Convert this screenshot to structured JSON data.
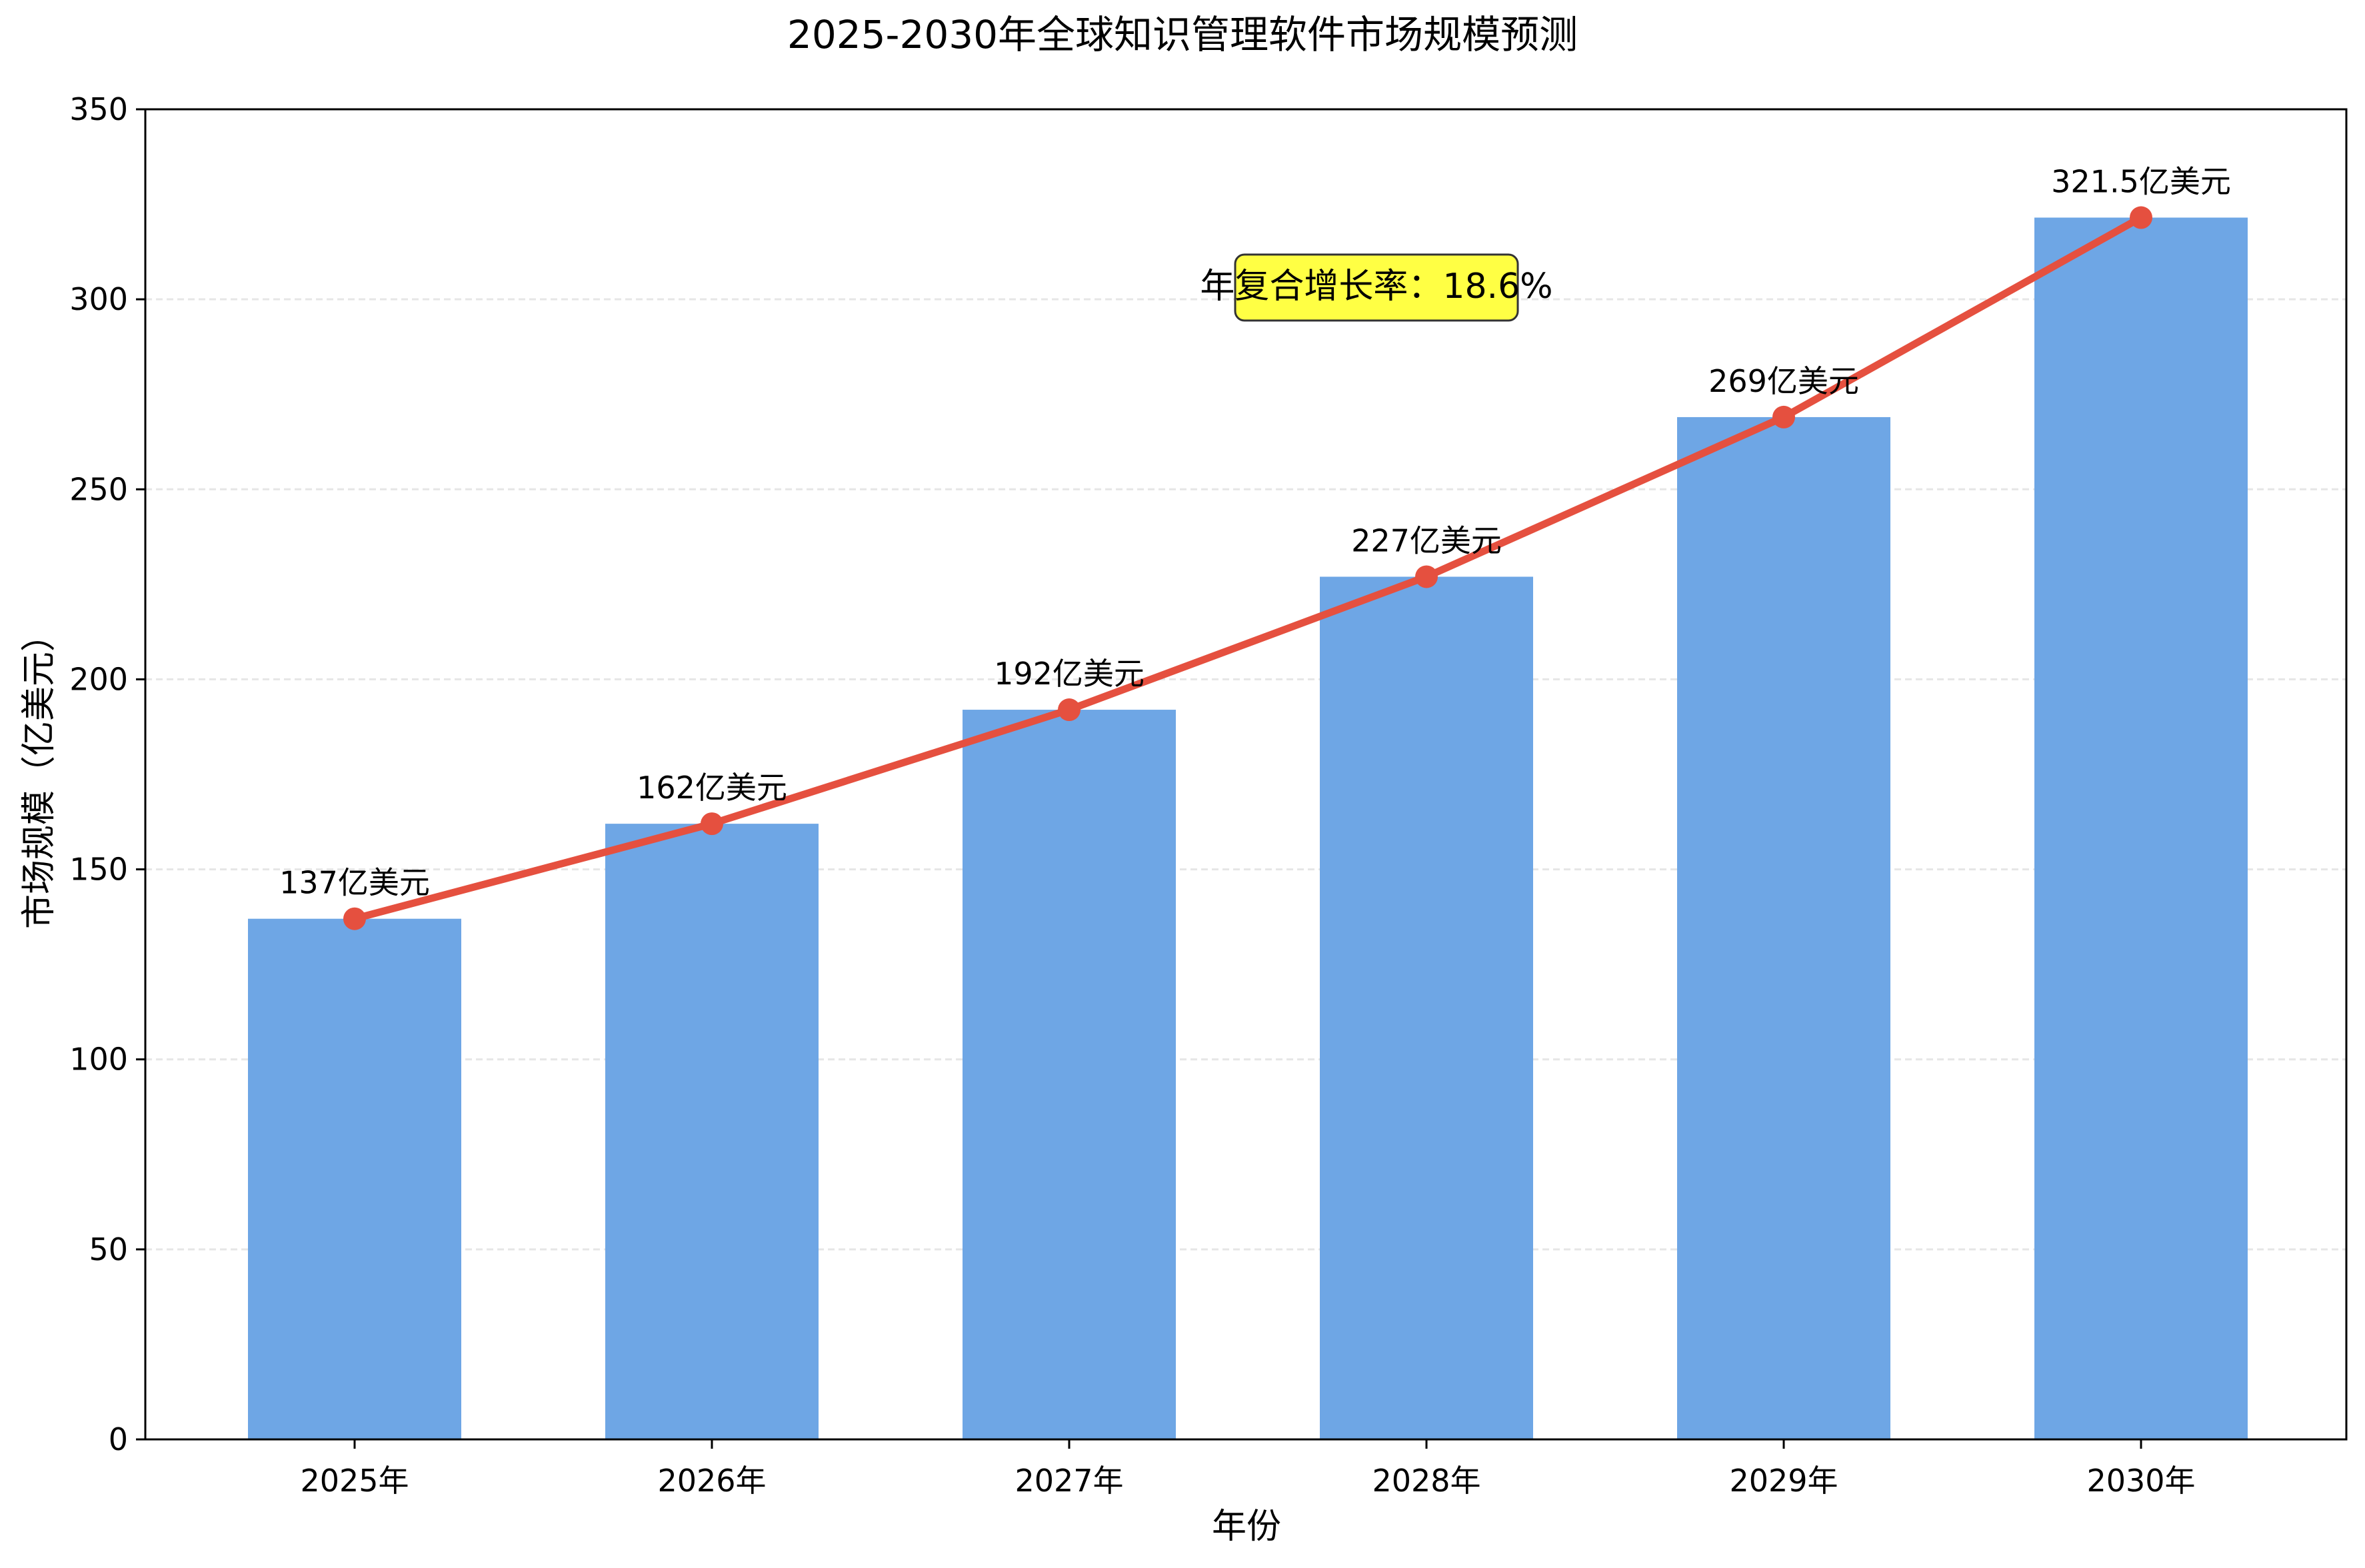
{
  "chart_data": {
    "type": "bar",
    "title": "2025-2030年全球知识管理软件市场规模预测",
    "xlabel": "年份",
    "ylabel": "市场规模（亿美元）",
    "categories": [
      "2025年",
      "2026年",
      "2027年",
      "2028年",
      "2029年",
      "2030年"
    ],
    "values": [
      137,
      162,
      192,
      227,
      269,
      321.5
    ],
    "data_labels": [
      "137亿美元",
      "162亿美元",
      "192亿美元",
      "227亿美元",
      "269亿美元",
      "321.5亿美元"
    ],
    "line_overlay": {
      "type": "line",
      "values": [
        137,
        162,
        192,
        227,
        269,
        321.5
      ],
      "marker": "circle"
    },
    "ylim": [
      0,
      350
    ],
    "yticks": [
      0,
      50,
      100,
      150,
      200,
      250,
      300,
      350
    ],
    "grid": "y-axis dashed",
    "annotation": "年复合增长率：18.6%",
    "colors": {
      "bar": "#6EA6E5",
      "line": "#E5503F",
      "annotation_bg": "#FFFF44",
      "annotation_border": "#333333",
      "grid": "#E6E6E6"
    }
  }
}
